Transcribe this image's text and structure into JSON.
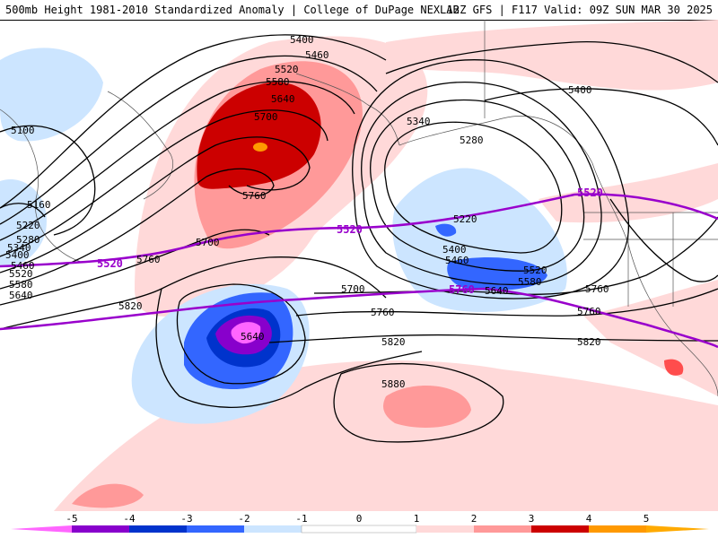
{
  "header": {
    "left_title": "500mb Height 1981-2010 Standardized Anomaly | College of DuPage NEXLAB",
    "right_title": "12Z GFS | F117 Valid: 09Z SUN MAR 30 2025"
  },
  "map": {
    "contour_labels_black": [
      "5400",
      "5460",
      "5520",
      "5580",
      "5640",
      "5700",
      "5760",
      "5100",
      "5160",
      "5220",
      "5280",
      "5340",
      "5400",
      "5460",
      "5520",
      "5580",
      "5640",
      "5700",
      "5760",
      "5820",
      "5640",
      "5340",
      "5280",
      "5220",
      "5400",
      "5460",
      "5520",
      "5580",
      "5640",
      "5700",
      "5760",
      "5820",
      "5880",
      "5400",
      "5820"
    ],
    "contour_labels_purple": [
      "5520",
      "5520",
      "5520",
      "5760"
    ],
    "colors": {
      "neg5": "#ff66ff",
      "neg4": "#8800cc",
      "neg3": "#0033cc",
      "neg2": "#3366ff",
      "neg1": "#cce5ff",
      "pos1": "#ffd9d9",
      "pos2": "#ff9999",
      "pos3": "#ff4d4d",
      "pos4": "#cc0000",
      "pos5": "#ff9900",
      "purple_line": "#9900cc"
    }
  },
  "colorbar": {
    "ticks": [
      "-5",
      "-4",
      "-3",
      "-2",
      "-1",
      "0",
      "1",
      "2",
      "3",
      "4",
      "5"
    ]
  }
}
